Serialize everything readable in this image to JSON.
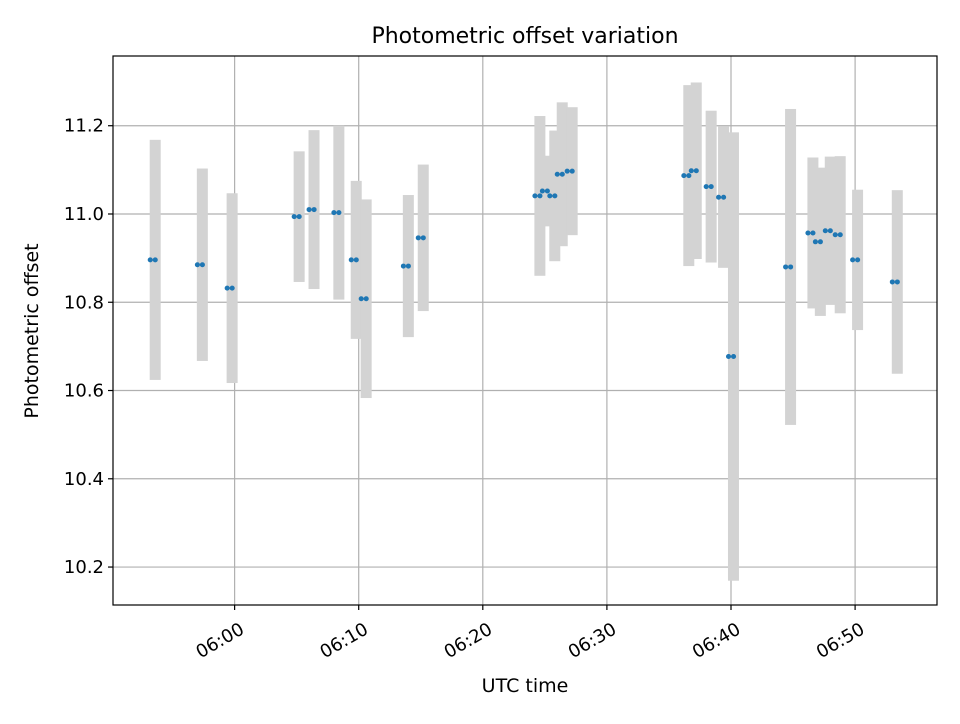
{
  "chart_data": {
    "type": "scatter",
    "title": "Photometric offset variation",
    "xlabel": "UTC time",
    "ylabel": "Photometric offset",
    "x_unit": "minutes",
    "xlim": [
      "05:50:12",
      "06:56:36"
    ],
    "ylim": [
      10.114,
      11.358
    ],
    "x_ticks": [
      "06:00",
      "06:10",
      "06:20",
      "06:30",
      "06:40",
      "06:50"
    ],
    "y_ticks": [
      "10.2",
      "10.4",
      "10.6",
      "10.8",
      "11.0",
      "11.2"
    ],
    "grid": true,
    "series": [
      {
        "name": "",
        "color": "#1f77b4",
        "error_color": "#d3d3d3",
        "points": [
          {
            "x": "05:53:36",
            "y": 10.896,
            "err": 0.272
          },
          {
            "x": "05:57:24",
            "y": 10.885,
            "err": 0.218
          },
          {
            "x": "05:59:48",
            "y": 10.832,
            "err": 0.215
          },
          {
            "x": "06:05:12",
            "y": 10.994,
            "err": 0.148
          },
          {
            "x": "06:06:24",
            "y": 11.01,
            "err": 0.18
          },
          {
            "x": "06:08:24",
            "y": 11.003,
            "err": 0.197
          },
          {
            "x": "06:09:48",
            "y": 10.896,
            "err": 0.179
          },
          {
            "x": "06:10:36",
            "y": 10.808,
            "err": 0.225
          },
          {
            "x": "06:14:00",
            "y": 10.882,
            "err": 0.161
          },
          {
            "x": "06:15:12",
            "y": 10.946,
            "err": 0.166
          },
          {
            "x": "06:24:36",
            "y": 11.041,
            "err": 0.181
          },
          {
            "x": "06:25:12",
            "y": 11.052,
            "err": 0.08
          },
          {
            "x": "06:25:48",
            "y": 11.041,
            "err": 0.148
          },
          {
            "x": "06:26:24",
            "y": 11.09,
            "err": 0.163
          },
          {
            "x": "06:27:12",
            "y": 11.097,
            "err": 0.145
          },
          {
            "x": "06:36:36",
            "y": 11.087,
            "err": 0.205
          },
          {
            "x": "06:37:12",
            "y": 11.098,
            "err": 0.2
          },
          {
            "x": "06:38:24",
            "y": 11.062,
            "err": 0.172
          },
          {
            "x": "06:39:24",
            "y": 11.038,
            "err": 0.16
          },
          {
            "x": "06:40:12",
            "y": 10.677,
            "err": 0.508
          },
          {
            "x": "06:44:48",
            "y": 10.88,
            "err": 0.358
          },
          {
            "x": "06:46:36",
            "y": 10.957,
            "err": 0.171
          },
          {
            "x": "06:47:12",
            "y": 10.937,
            "err": 0.168
          },
          {
            "x": "06:48:00",
            "y": 10.962,
            "err": 0.168
          },
          {
            "x": "06:48:48",
            "y": 10.953,
            "err": 0.178
          },
          {
            "x": "06:50:12",
            "y": 10.896,
            "err": 0.159
          },
          {
            "x": "06:53:24",
            "y": 10.846,
            "err": 0.208
          }
        ]
      }
    ]
  }
}
